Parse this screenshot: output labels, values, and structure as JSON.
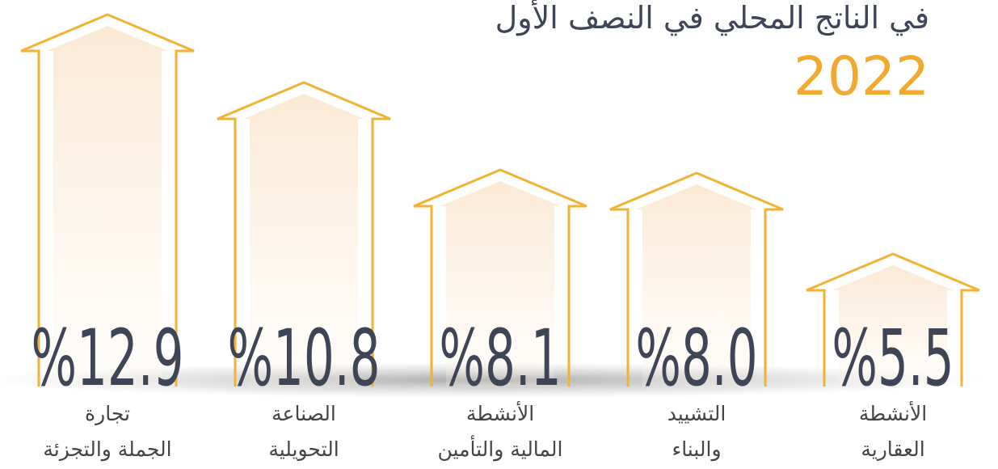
{
  "chart_data": {
    "type": "bar",
    "title": "في الناتج المحلي في النصف الأول",
    "subtitle": "2022",
    "categories": [
      [
        "تجارة",
        "الجملة والتجزئة"
      ],
      [
        "الصناعة",
        "التحويلية"
      ],
      [
        "الأنشطة",
        "المالية والتأمين"
      ],
      [
        "التشييد",
        "والبناء"
      ],
      [
        "الأنشطة",
        "العقارية"
      ]
    ],
    "values": [
      12.9,
      10.8,
      8.1,
      8.0,
      5.5
    ],
    "value_labels": [
      "%12.9",
      "%10.8",
      "%8.1",
      "%8.0",
      "%5.5"
    ],
    "color": "#f2b234"
  }
}
